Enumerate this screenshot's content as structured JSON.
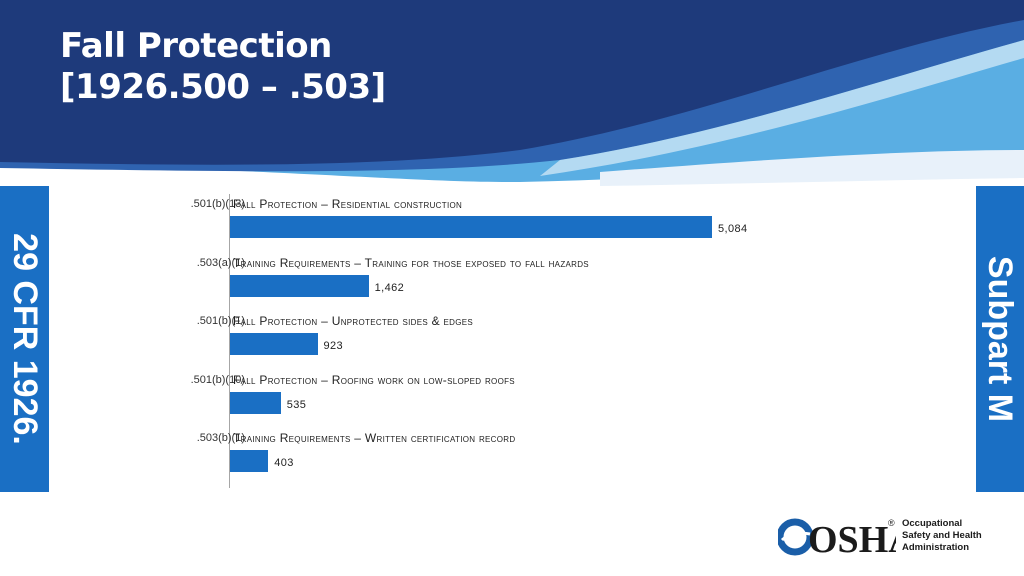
{
  "slide": {
    "title_line1": "Fall Protection",
    "title_line2": "[1926.500 – .503]",
    "left_tab": "29 CFR 1926.",
    "right_tab": "Subpart M"
  },
  "logo": {
    "wordmark": "OSHA",
    "registered": "®",
    "line1": "Occupational",
    "line2": "Safety and Health",
    "line3": "Administration"
  },
  "colors": {
    "header_dark": "#1e3a7b",
    "header_light": "#5aaee3",
    "accent": "#1a6fc4"
  },
  "chart_data": {
    "type": "bar",
    "orientation": "horizontal",
    "categories": [
      ".501(b)(13)",
      ".503(a)(1)",
      ".501(b)(1)",
      ".501(b)(10)",
      ".503(b)(1)"
    ],
    "titles": [
      "Fall Protection – Residential construction",
      "Training Requirements – Training for those exposed to fall hazards",
      "Fall Protection – Unprotected sides & edges",
      "Fall Protection – Roofing work on low-sloped roofs",
      "Training Requirements – Written certification record"
    ],
    "values": [
      5084,
      1462,
      923,
      535,
      403
    ],
    "value_labels": [
      "5,084",
      "1,462",
      "923",
      "535",
      "403"
    ],
    "xlim": [
      0,
      5084
    ],
    "grid": false,
    "legend": "none"
  }
}
